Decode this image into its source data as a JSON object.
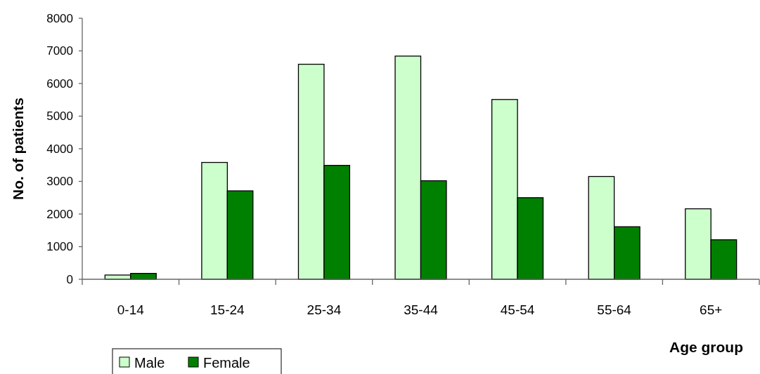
{
  "chart_data": {
    "type": "bar",
    "xlabel": "Age group",
    "ylabel": "No. of patients",
    "categories": [
      "0-14",
      "15-24",
      "25-34",
      "35-44",
      "45-54",
      "55-64",
      "65+"
    ],
    "series": [
      {
        "name": "Male",
        "color": "#ccffcc",
        "values": [
          130,
          3580,
          6590,
          6840,
          5510,
          3150,
          2160
        ]
      },
      {
        "name": "Female",
        "color": "#008000",
        "values": [
          180,
          2710,
          3490,
          3020,
          2500,
          1610,
          1210
        ]
      }
    ],
    "ylim": [
      0,
      8000
    ],
    "yticks": [
      0,
      1000,
      2000,
      3000,
      4000,
      5000,
      6000,
      7000,
      8000
    ],
    "legend": "bottom left",
    "grid": false
  }
}
